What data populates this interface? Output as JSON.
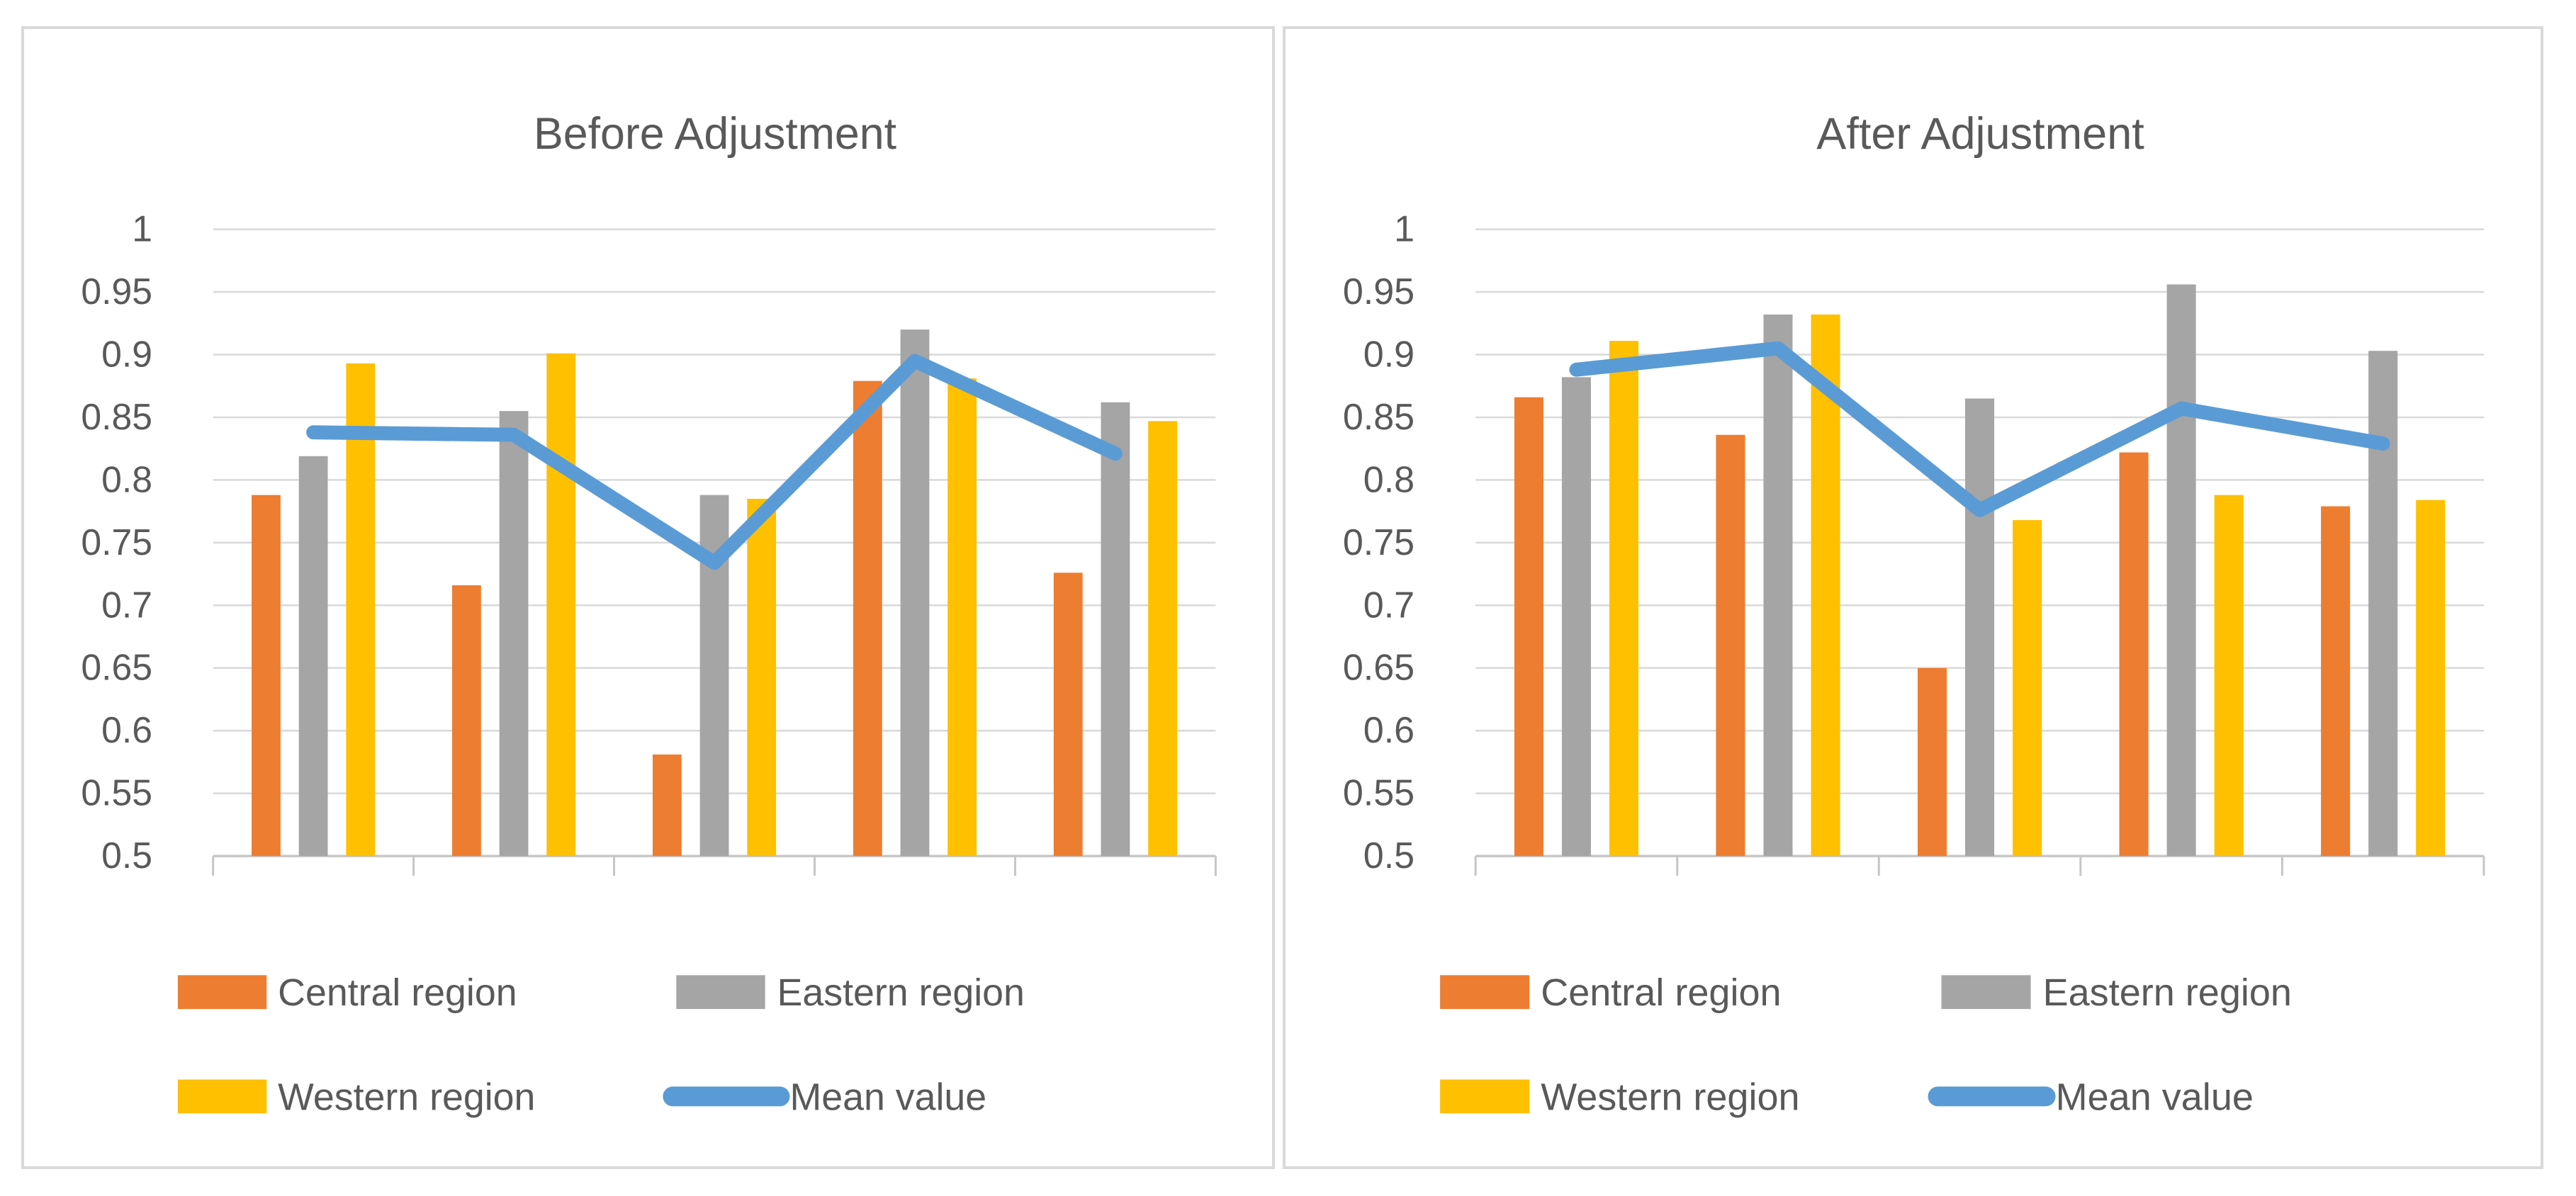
{
  "palette": {
    "central_region": "#ED7D31",
    "eastern_region": "#A5A5A5",
    "western_region": "#FFC000",
    "mean_value": "#5B9BD5",
    "gridline": "#D9D9D9",
    "axis": "#C6C6C6",
    "text": "#595959",
    "panel_border": "#D9D9D9",
    "background": "#FFFFFF"
  },
  "chart_data": [
    {
      "type": "bar",
      "title": "Before Adjustment",
      "categories": [
        "",
        "",
        "",
        "",
        ""
      ],
      "ylim": [
        0.5,
        1.0
      ],
      "ytick_step": 0.05,
      "y_tick_labels": [
        "1",
        "0.95",
        "0.9",
        "0.85",
        "0.8",
        "0.75",
        "0.7",
        "0.65",
        "0.6",
        "0.55",
        "0.5"
      ],
      "grid": true,
      "legend_position": "bottom",
      "legend_rows": [
        [
          "Central region",
          "Eastern region"
        ],
        [
          "Western region",
          "Mean value"
        ]
      ],
      "series": [
        {
          "name": "Central region",
          "kind": "bar",
          "color": "#ED7D31",
          "values": [
            0.788,
            0.716,
            0.581,
            0.879,
            0.726
          ]
        },
        {
          "name": "Eastern region",
          "kind": "bar",
          "color": "#A5A5A5",
          "values": [
            0.819,
            0.855,
            0.788,
            0.92,
            0.862
          ]
        },
        {
          "name": "Western region",
          "kind": "bar",
          "color": "#FFC000",
          "values": [
            0.893,
            0.901,
            0.785,
            0.881,
            0.847
          ]
        },
        {
          "name": "Mean value",
          "kind": "line",
          "color": "#5B9BD5",
          "values": [
            0.838,
            0.836,
            0.734,
            0.895,
            0.821
          ]
        }
      ]
    },
    {
      "type": "bar",
      "title": "After Adjustment",
      "categories": [
        "",
        "",
        "",
        "",
        ""
      ],
      "ylim": [
        0.5,
        1.0
      ],
      "ytick_step": 0.05,
      "y_tick_labels": [
        "1",
        "0.95",
        "0.9",
        "0.85",
        "0.8",
        "0.75",
        "0.7",
        "0.65",
        "0.6",
        "0.55",
        "0.5"
      ],
      "grid": true,
      "legend_position": "bottom",
      "legend_rows": [
        [
          "Central region",
          "Eastern region"
        ],
        [
          "Western region",
          "Mean value"
        ]
      ],
      "series": [
        {
          "name": "Central region",
          "kind": "bar",
          "color": "#ED7D31",
          "values": [
            0.866,
            0.836,
            0.65,
            0.822,
            0.779
          ]
        },
        {
          "name": "Eastern region",
          "kind": "bar",
          "color": "#A5A5A5",
          "values": [
            0.882,
            0.932,
            0.865,
            0.956,
            0.903
          ]
        },
        {
          "name": "Western region",
          "kind": "bar",
          "color": "#FFC000",
          "values": [
            0.911,
            0.932,
            0.768,
            0.788,
            0.784
          ]
        },
        {
          "name": "Mean value",
          "kind": "line",
          "color": "#5B9BD5",
          "values": [
            0.888,
            0.905,
            0.776,
            0.857,
            0.829
          ]
        }
      ]
    }
  ]
}
